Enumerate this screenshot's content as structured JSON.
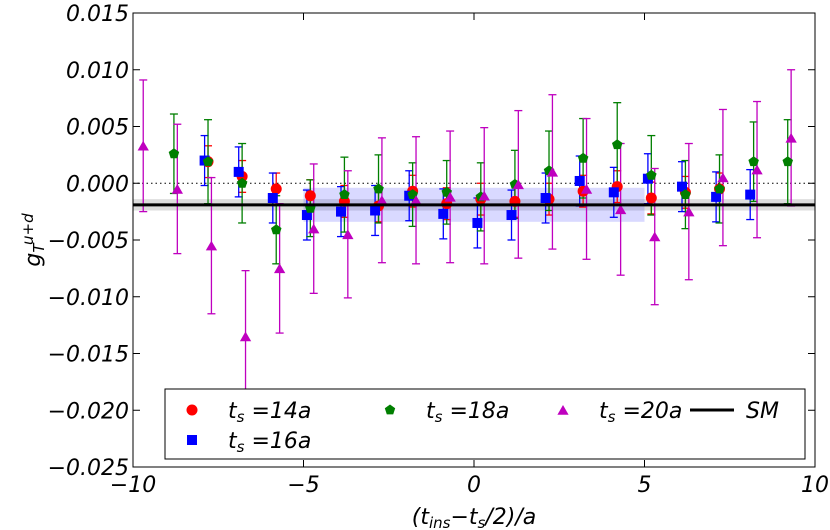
{
  "chart_data": {
    "type": "errorbar",
    "xlabel": [
      {
        "text": "(t"
      },
      {
        "text": "ins",
        "sub": true
      },
      {
        "text": "−t"
      },
      {
        "text": "s",
        "sub": true
      },
      {
        "text": "/2)/a"
      }
    ],
    "ylabel": [
      {
        "text": "g"
      },
      {
        "text": "T",
        "sub": true
      },
      {
        "text": "u+d",
        "sup": true
      }
    ],
    "xlim": [
      -10,
      10
    ],
    "ylim": [
      -0.025,
      0.015
    ],
    "xticks": [
      {
        "value": -10,
        "label": "−10"
      },
      {
        "value": -5,
        "label": "−5"
      },
      0,
      5,
      10
    ],
    "yticks": [
      {
        "value": -0.025,
        "label": "−0.025"
      },
      {
        "value": -0.02,
        "label": "−0.020"
      },
      {
        "value": -0.015,
        "label": "−0.015"
      },
      {
        "value": -0.01,
        "label": "−0.010"
      },
      {
        "value": -0.005,
        "label": "−0.005"
      },
      {
        "value": 0,
        "label": "0.000"
      },
      {
        "value": 0.005,
        "label": "0.005"
      },
      {
        "value": 0.01,
        "label": "0.010"
      },
      {
        "value": 0.015,
        "label": "0.015"
      }
    ],
    "zero_line": 0,
    "series": [
      {
        "name": "ts =14a",
        "color": "#ff0000",
        "marker": "circle",
        "x": [
          -7.8,
          -6.8,
          -5.8,
          -4.8,
          -3.8,
          -2.8,
          -1.8,
          -0.8,
          0.2,
          1.2,
          2.2,
          3.2,
          4.2,
          5.2,
          6.2,
          7.2
        ],
        "values": [
          0.0019,
          0.0006,
          -0.0005,
          -0.0011,
          -0.0016,
          -0.002,
          -0.0007,
          -0.0018,
          -0.0014,
          -0.0016,
          -0.0014,
          -0.0007,
          -0.0003,
          -0.0013,
          -0.0008,
          -0.0005
        ],
        "errors": [
          0.0014,
          0.0014,
          0.0014,
          0.0014,
          0.0014,
          0.0014,
          0.0014,
          0.0014,
          0.0014,
          0.0014,
          0.0014,
          0.0014,
          0.0014,
          0.0014,
          0.0014,
          0.0014
        ]
      },
      {
        "name": "ts =16a",
        "color": "#0000ff",
        "marker": "square",
        "x": [
          -7.9,
          -6.9,
          -5.9,
          -4.9,
          -3.9,
          -2.9,
          -1.9,
          -0.9,
          0.1,
          1.1,
          2.1,
          3.1,
          4.1,
          5.1,
          6.1,
          7.1,
          8.1
        ],
        "values": [
          0.002,
          0.001,
          -0.0013,
          -0.0028,
          -0.0025,
          -0.0024,
          -0.0011,
          -0.0027,
          -0.0035,
          -0.0028,
          -0.0013,
          0.0002,
          -0.0008,
          0.0004,
          -0.0003,
          -0.0012,
          -0.001
        ],
        "errors": [
          0.0022,
          0.0022,
          0.0022,
          0.0022,
          0.0022,
          0.0022,
          0.0022,
          0.0022,
          0.0022,
          0.0022,
          0.0022,
          0.0022,
          0.0022,
          0.0022,
          0.0022,
          0.0022,
          0.0022
        ]
      },
      {
        "name": "ts =18a",
        "color": "#007f00",
        "marker": "pentagon",
        "x": [
          -8.8,
          -7.8,
          -6.8,
          -5.8,
          -4.8,
          -3.8,
          -2.8,
          -1.8,
          -0.8,
          0.2,
          1.2,
          2.2,
          3.2,
          4.2,
          5.2,
          6.2,
          7.2,
          8.2,
          9.2
        ],
        "values": [
          0.0026,
          0.0019,
          0.0,
          -0.0041,
          -0.0022,
          -0.001,
          -0.0005,
          -0.001,
          -0.0008,
          -0.0012,
          -0.0001,
          0.0011,
          0.0022,
          0.0034,
          0.0007,
          -0.001,
          -0.0005,
          0.0019,
          0.0019
        ],
        "errors": [
          0.0035,
          0.0037,
          0.0035,
          0.003,
          0.0025,
          0.0033,
          0.003,
          0.0028,
          0.0028,
          0.003,
          0.003,
          0.0035,
          0.0035,
          0.0037,
          0.0035,
          0.003,
          0.003,
          0.0035,
          0.0037
        ]
      },
      {
        "name": "ts =20a",
        "color": "#bf00bf",
        "marker": "triangle",
        "x": [
          -9.7,
          -8.7,
          -7.7,
          -6.7,
          -5.7,
          -4.7,
          -3.7,
          -2.7,
          -1.7,
          -0.7,
          0.3,
          1.3,
          2.3,
          3.3,
          4.3,
          5.3,
          6.3,
          7.3,
          8.3,
          9.3
        ],
        "values": [
          0.0033,
          -0.0005,
          -0.0055,
          -0.0135,
          -0.0075,
          -0.004,
          -0.0045,
          -0.0015,
          -0.0015,
          -0.0012,
          -0.0011,
          -0.0001,
          0.001,
          -0.0005,
          -0.0023,
          -0.0047,
          -0.0025,
          0.0005,
          0.0012,
          0.004
        ],
        "errors": [
          0.0058,
          0.0057,
          0.006,
          0.0058,
          0.0057,
          0.0057,
          0.0056,
          0.0055,
          0.0056,
          0.0058,
          0.006,
          0.0065,
          0.0068,
          0.0062,
          0.0058,
          0.006,
          0.006,
          0.006,
          0.006,
          0.006
        ]
      }
    ],
    "fit_band": {
      "color": "#0000ff",
      "xlim": [
        -5,
        5
      ],
      "value": -0.0019,
      "error": 0.0015
    },
    "sm": {
      "name": "SM",
      "color": "#000000",
      "value": -0.0019,
      "error": 0.0005
    }
  }
}
